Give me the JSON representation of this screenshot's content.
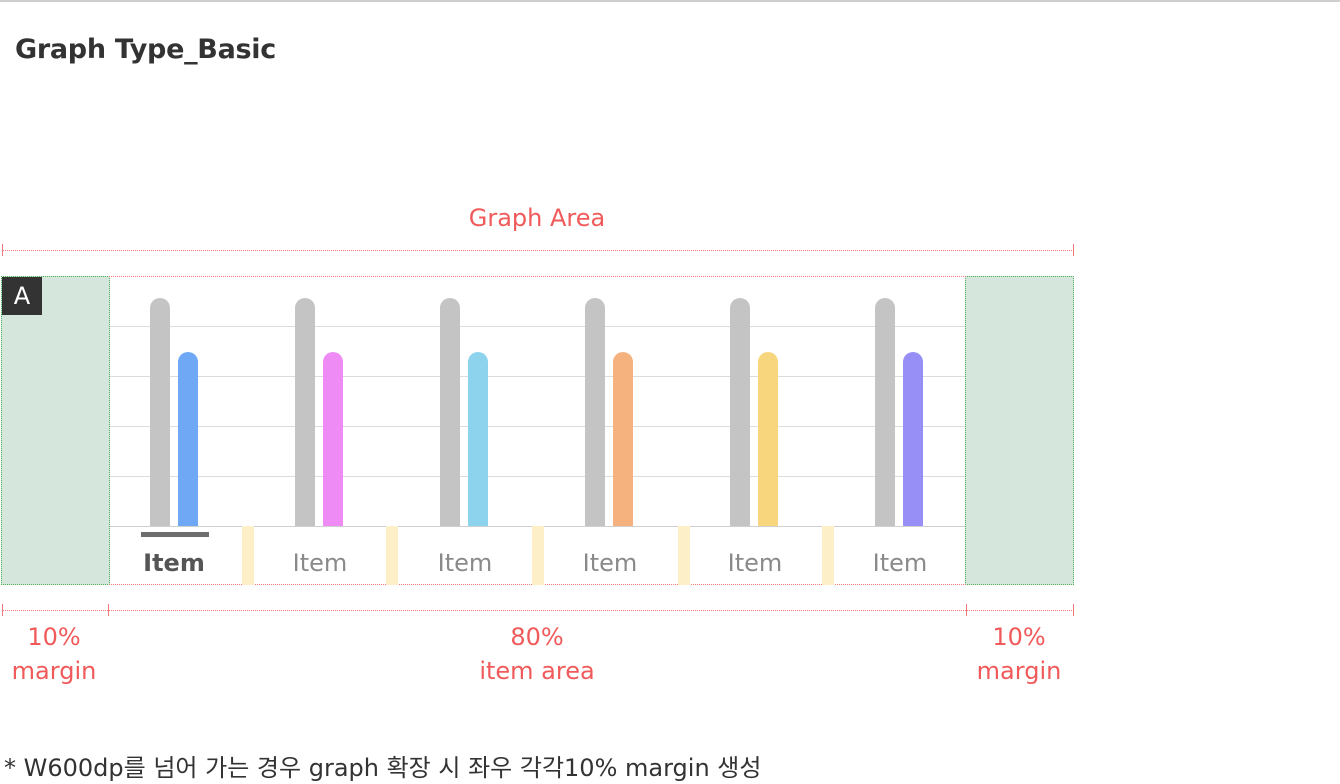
{
  "page_title": "Graph Type_Basic",
  "graph_area_label": "Graph Area",
  "badge": "A",
  "items": [
    {
      "label": "Item",
      "selected": true,
      "accent": "#6fa8f5"
    },
    {
      "label": "Item",
      "selected": false,
      "accent": "#ef8bf5"
    },
    {
      "label": "Item",
      "selected": false,
      "accent": "#8dd3ee"
    },
    {
      "label": "Item",
      "selected": false,
      "accent": "#f6b27e"
    },
    {
      "label": "Item",
      "selected": false,
      "accent": "#f8d67e"
    },
    {
      "label": "Item",
      "selected": false,
      "accent": "#978ff6"
    }
  ],
  "bar_base_color": "#c4c4c4",
  "dimensions": {
    "left": {
      "percent": "10%",
      "name": "margin"
    },
    "center": {
      "percent": "80%",
      "name": "item area"
    },
    "right": {
      "percent": "10%",
      "name": "margin"
    }
  },
  "footnote": "* W600dp를 넘어 가는 경우 graph 확장 시 좌우 각각10% margin 생성",
  "colors": {
    "annotation": "#f05a5a",
    "margin_fill": "#d5e6dd",
    "spacer_fill": "#fdf0c8"
  }
}
